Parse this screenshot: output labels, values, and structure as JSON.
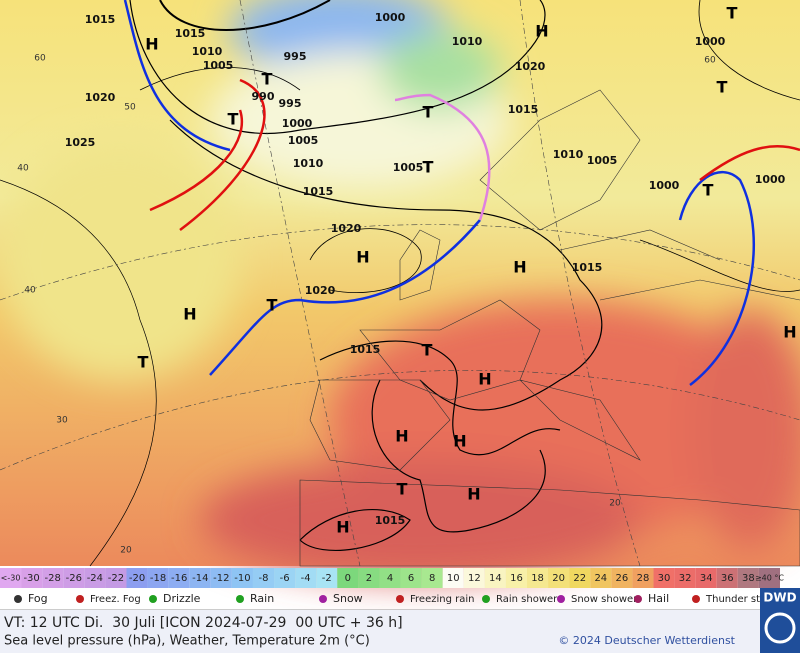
{
  "map": {
    "isobar_labels": [
      "1015",
      "1015",
      "1010",
      "1005",
      "1020",
      "1025",
      "1000",
      "1010",
      "1020",
      "1015",
      "995",
      "990",
      "995",
      "1000",
      "1005",
      "1010",
      "1015",
      "1020",
      "1020",
      "1015",
      "1005",
      "1010",
      "1005",
      "1000",
      "1000",
      "1000",
      "1015",
      "1015"
    ],
    "pressure_centers": [
      "H",
      "H",
      "T",
      "T",
      "T",
      "T",
      "H",
      "H",
      "H",
      "T",
      "T",
      "T",
      "H",
      "H",
      "H",
      "T",
      "H",
      "H",
      "T",
      "T",
      "H",
      "T"
    ],
    "temperature_labels": [
      "60",
      "40",
      "40",
      "30",
      "20",
      "20",
      "60",
      "50"
    ]
  },
  "color_scale": {
    "below": "<-30",
    "values": [
      -30,
      -28,
      -26,
      -24,
      -22,
      -20,
      -18,
      -16,
      -14,
      -12,
      -10,
      -8,
      -6,
      -4,
      -2,
      0,
      2,
      4,
      6,
      8,
      10,
      12,
      14,
      16,
      18,
      20,
      22,
      24,
      26,
      28,
      30,
      32,
      34,
      36,
      38
    ],
    "above": "≥40 °C"
  },
  "legend": [
    "Fog",
    "Freez. Fog",
    "Drizzle",
    "Rain",
    "Snow",
    "Freezing rain",
    "Rain shower",
    "Snow shower",
    "Hail",
    "Thunder storm"
  ],
  "footer": {
    "valid_time": "VT: 12 UTC Di.  30 Juli [ICON 2024-07-29  00 UTC + 36 h]",
    "description": "Sea level pressure (hPa), Weather, Temperature 2m (°C)",
    "copyright": "© 2024 Deutscher Wetterdienst",
    "logo": "DWD"
  }
}
